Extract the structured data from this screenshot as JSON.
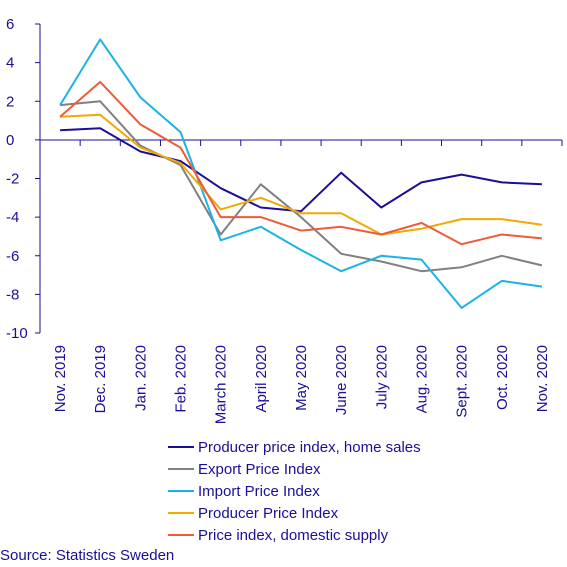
{
  "chart_data": {
    "type": "line",
    "categories": [
      "Nov. 2019",
      "Dec. 2019",
      "Jan. 2020",
      "Feb. 2020",
      "March 2020",
      "April 2020",
      "May 2020",
      "June 2020",
      "July 2020",
      "Aug. 2020",
      "Sept. 2020",
      "Oct. 2020",
      "Nov. 2020"
    ],
    "ylim": [
      -10,
      6
    ],
    "yticks": [
      6,
      4,
      2,
      0,
      -2,
      -4,
      -6,
      -8,
      -10
    ],
    "grid": false,
    "legend_position": "bottom",
    "series": [
      {
        "name": "Producer price index, home sales",
        "color": "#1a0f96",
        "values": [
          0.5,
          0.6,
          -0.6,
          -1.1,
          -2.5,
          -3.5,
          -3.7,
          -1.7,
          -3.5,
          -2.2,
          -1.8,
          -2.2,
          -2.3
        ]
      },
      {
        "name": "Export Price Index",
        "color": "#808080",
        "values": [
          1.8,
          2.0,
          -0.3,
          -1.3,
          -4.9,
          -2.3,
          -4.0,
          -5.9,
          -6.3,
          -6.8,
          -6.6,
          -6.0,
          -6.5
        ]
      },
      {
        "name": "Import Price Index",
        "color": "#1ab3e6",
        "values": [
          1.8,
          5.2,
          2.2,
          0.4,
          -5.2,
          -4.5,
          -5.7,
          -6.8,
          -6.0,
          -6.2,
          -8.7,
          -7.3,
          -7.6
        ]
      },
      {
        "name": "Producer Price Index",
        "color": "#f2a900",
        "values": [
          1.2,
          1.3,
          -0.4,
          -1.2,
          -3.6,
          -3.0,
          -3.8,
          -3.8,
          -4.9,
          -4.6,
          -4.1,
          -4.1,
          -4.4
        ]
      },
      {
        "name": "Price index, domestic supply",
        "color": "#ef5a37",
        "values": [
          1.2,
          3.0,
          0.8,
          -0.4,
          -4.0,
          -4.0,
          -4.7,
          -4.5,
          -4.9,
          -4.3,
          -5.4,
          -4.9,
          -5.1
        ]
      }
    ]
  },
  "source": "Source: Statistics Sweden"
}
